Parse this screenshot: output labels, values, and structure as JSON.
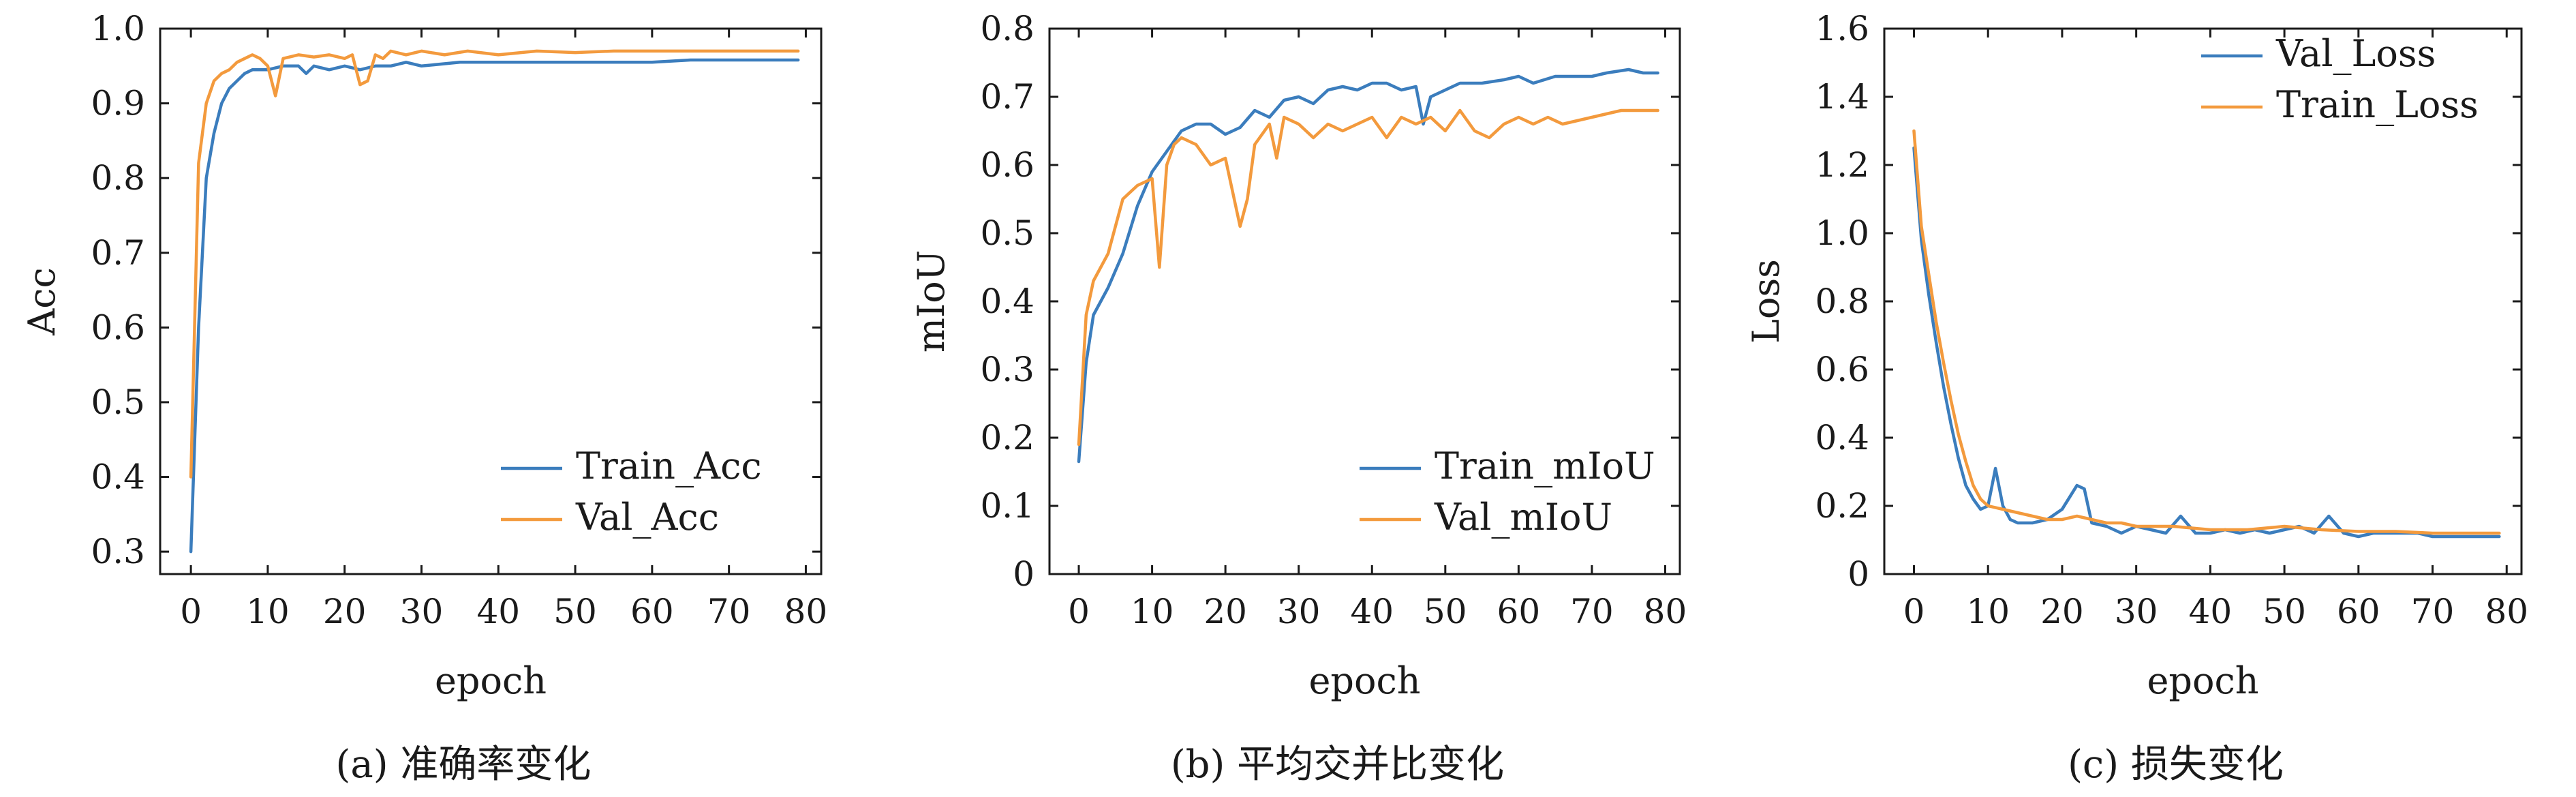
{
  "colors": {
    "blue": "#3b7dbd",
    "orange": "#f39a3d",
    "axis": "#1a1a1a"
  },
  "chart_data": [
    {
      "type": "line",
      "caption": "(a) 准确率变化",
      "xlabel": "epoch",
      "ylabel": "Acc",
      "xlim": [
        -4,
        82
      ],
      "ylim": [
        0.27,
        1.0
      ],
      "xticks": [
        0,
        10,
        20,
        30,
        40,
        50,
        60,
        70,
        80
      ],
      "yticks": [
        0.3,
        0.4,
        0.5,
        0.6,
        0.7,
        0.8,
        0.9,
        1.0
      ],
      "ytick_labels": [
        "0.3",
        "0.4",
        "0.5",
        "0.6",
        "0.7",
        "0.8",
        "0.9",
        "1.0"
      ],
      "legend_position": "lower-right",
      "series": [
        {
          "name": "Train_Acc",
          "color": "blue",
          "x": [
            0,
            1,
            2,
            3,
            4,
            5,
            6,
            7,
            8,
            10,
            12,
            14,
            15,
            16,
            18,
            20,
            22,
            24,
            26,
            28,
            30,
            35,
            40,
            45,
            50,
            55,
            60,
            65,
            70,
            75,
            79
          ],
          "y": [
            0.3,
            0.6,
            0.8,
            0.86,
            0.9,
            0.92,
            0.93,
            0.94,
            0.945,
            0.945,
            0.95,
            0.95,
            0.94,
            0.95,
            0.945,
            0.95,
            0.945,
            0.95,
            0.95,
            0.955,
            0.95,
            0.955,
            0.955,
            0.955,
            0.955,
            0.955,
            0.955,
            0.958,
            0.958,
            0.958,
            0.958
          ]
        },
        {
          "name": "Val_Acc",
          "color": "orange",
          "x": [
            0,
            1,
            2,
            3,
            4,
            5,
            6,
            7,
            8,
            9,
            10,
            11,
            12,
            14,
            16,
            18,
            20,
            21,
            22,
            23,
            24,
            25,
            26,
            28,
            30,
            33,
            36,
            40,
            45,
            50,
            55,
            60,
            65,
            70,
            75,
            79
          ],
          "y": [
            0.4,
            0.82,
            0.9,
            0.93,
            0.94,
            0.945,
            0.955,
            0.96,
            0.965,
            0.96,
            0.95,
            0.91,
            0.96,
            0.965,
            0.962,
            0.965,
            0.96,
            0.965,
            0.925,
            0.93,
            0.965,
            0.96,
            0.97,
            0.965,
            0.97,
            0.965,
            0.97,
            0.965,
            0.97,
            0.968,
            0.97,
            0.97,
            0.97,
            0.97,
            0.97,
            0.97
          ]
        }
      ]
    },
    {
      "type": "line",
      "caption": "(b) 平均交并比变化",
      "xlabel": "epoch",
      "ylabel": "mIoU",
      "xlim": [
        -4,
        82
      ],
      "ylim": [
        0,
        0.8
      ],
      "xticks": [
        0,
        10,
        20,
        30,
        40,
        50,
        60,
        70,
        80
      ],
      "yticks": [
        0,
        0.1,
        0.2,
        0.3,
        0.4,
        0.5,
        0.6,
        0.7,
        0.8
      ],
      "ytick_labels": [
        "0",
        "0.1",
        "0.2",
        "0.3",
        "0.4",
        "0.5",
        "0.6",
        "0.7",
        "0.8"
      ],
      "legend_position": "lower-right",
      "series": [
        {
          "name": "Train_mIoU",
          "color": "blue",
          "x": [
            0,
            1,
            2,
            4,
            6,
            8,
            10,
            12,
            14,
            16,
            18,
            20,
            22,
            24,
            26,
            28,
            30,
            32,
            34,
            36,
            38,
            40,
            42,
            44,
            46,
            47,
            48,
            50,
            52,
            55,
            58,
            60,
            62,
            65,
            68,
            70,
            72,
            75,
            77,
            79
          ],
          "y": [
            0.165,
            0.31,
            0.38,
            0.42,
            0.47,
            0.54,
            0.59,
            0.62,
            0.65,
            0.66,
            0.66,
            0.645,
            0.655,
            0.68,
            0.67,
            0.695,
            0.7,
            0.69,
            0.71,
            0.715,
            0.71,
            0.72,
            0.72,
            0.71,
            0.715,
            0.66,
            0.7,
            0.71,
            0.72,
            0.72,
            0.725,
            0.73,
            0.72,
            0.73,
            0.73,
            0.73,
            0.735,
            0.74,
            0.735,
            0.735
          ]
        },
        {
          "name": "Val_mIoU",
          "color": "orange",
          "x": [
            0,
            1,
            2,
            4,
            6,
            8,
            10,
            11,
            12,
            13,
            14,
            16,
            18,
            20,
            22,
            23,
            24,
            26,
            27,
            28,
            30,
            32,
            34,
            36,
            38,
            40,
            42,
            44,
            46,
            48,
            50,
            52,
            54,
            56,
            58,
            60,
            62,
            64,
            66,
            68,
            70,
            72,
            74,
            76,
            78,
            79
          ],
          "y": [
            0.19,
            0.38,
            0.43,
            0.47,
            0.55,
            0.57,
            0.58,
            0.45,
            0.6,
            0.63,
            0.64,
            0.63,
            0.6,
            0.61,
            0.51,
            0.55,
            0.63,
            0.66,
            0.61,
            0.67,
            0.66,
            0.64,
            0.66,
            0.65,
            0.66,
            0.67,
            0.64,
            0.67,
            0.66,
            0.67,
            0.65,
            0.68,
            0.65,
            0.64,
            0.66,
            0.67,
            0.66,
            0.67,
            0.66,
            0.665,
            0.67,
            0.675,
            0.68,
            0.68,
            0.68,
            0.68
          ]
        }
      ]
    },
    {
      "type": "line",
      "caption": "(c) 损失变化",
      "xlabel": "epoch",
      "ylabel": "Loss",
      "xlim": [
        -4,
        82
      ],
      "ylim": [
        0,
        1.6
      ],
      "xticks": [
        0,
        10,
        20,
        30,
        40,
        50,
        60,
        70,
        80
      ],
      "yticks": [
        0,
        0.2,
        0.4,
        0.6,
        0.8,
        1.0,
        1.2,
        1.4,
        1.6
      ],
      "ytick_labels": [
        "0",
        "0.2",
        "0.4",
        "0.6",
        "0.8",
        "1.0",
        "1.2",
        "1.4",
        "1.6"
      ],
      "legend_position": "upper-right",
      "series": [
        {
          "name": "Val_Loss",
          "color": "blue",
          "x": [
            0,
            1,
            2,
            3,
            4,
            5,
            6,
            7,
            8,
            9,
            10,
            11,
            12,
            13,
            14,
            16,
            18,
            20,
            22,
            23,
            24,
            26,
            28,
            30,
            32,
            34,
            36,
            38,
            40,
            42,
            44,
            46,
            48,
            50,
            52,
            54,
            56,
            58,
            60,
            62,
            65,
            68,
            70,
            73,
            76,
            79
          ],
          "y": [
            1.25,
            0.98,
            0.82,
            0.68,
            0.55,
            0.44,
            0.34,
            0.26,
            0.22,
            0.19,
            0.2,
            0.31,
            0.2,
            0.16,
            0.15,
            0.15,
            0.16,
            0.19,
            0.26,
            0.25,
            0.15,
            0.14,
            0.12,
            0.14,
            0.13,
            0.12,
            0.17,
            0.12,
            0.12,
            0.13,
            0.12,
            0.13,
            0.12,
            0.13,
            0.14,
            0.12,
            0.17,
            0.12,
            0.11,
            0.12,
            0.12,
            0.12,
            0.11,
            0.11,
            0.11,
            0.11
          ]
        },
        {
          "name": "Train_Loss",
          "color": "orange",
          "x": [
            0,
            1,
            2,
            3,
            4,
            5,
            6,
            7,
            8,
            9,
            10,
            12,
            14,
            16,
            18,
            20,
            22,
            24,
            26,
            28,
            30,
            35,
            40,
            45,
            50,
            55,
            60,
            65,
            70,
            75,
            79
          ],
          "y": [
            1.3,
            1.02,
            0.88,
            0.74,
            0.62,
            0.51,
            0.41,
            0.33,
            0.26,
            0.22,
            0.2,
            0.19,
            0.18,
            0.17,
            0.16,
            0.16,
            0.17,
            0.16,
            0.15,
            0.15,
            0.14,
            0.14,
            0.13,
            0.13,
            0.14,
            0.13,
            0.125,
            0.125,
            0.12,
            0.12,
            0.12
          ]
        }
      ]
    }
  ]
}
